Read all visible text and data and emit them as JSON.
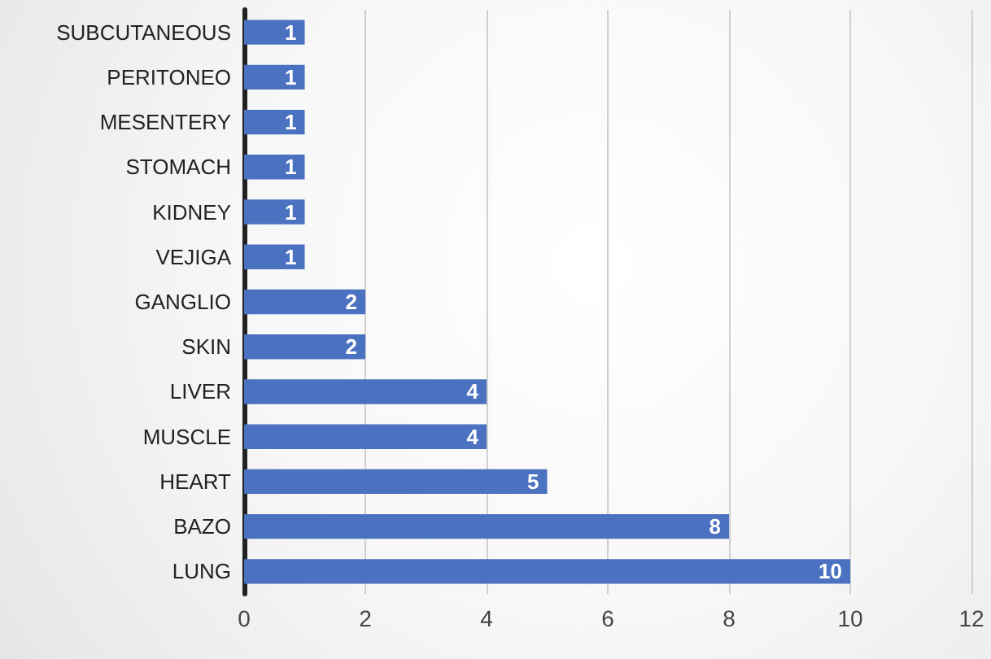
{
  "chart_data": {
    "type": "bar",
    "orientation": "horizontal",
    "categories": [
      "SUBCUTANEOUS",
      "PERITONEO",
      "MESENTERY",
      "STOMACH",
      "KIDNEY",
      "VEJIGA",
      "GANGLIO",
      "SKIN",
      "LIVER",
      "MUSCLE",
      "HEART",
      "BAZO",
      "LUNG"
    ],
    "values": [
      1,
      1,
      1,
      1,
      1,
      1,
      2,
      2,
      4,
      4,
      5,
      8,
      10
    ],
    "color": "#4a72c0",
    "xlim": [
      0,
      12
    ],
    "xticks": [
      0,
      2,
      4,
      6,
      8,
      10,
      12
    ],
    "grid": "x",
    "data_labels": true
  }
}
